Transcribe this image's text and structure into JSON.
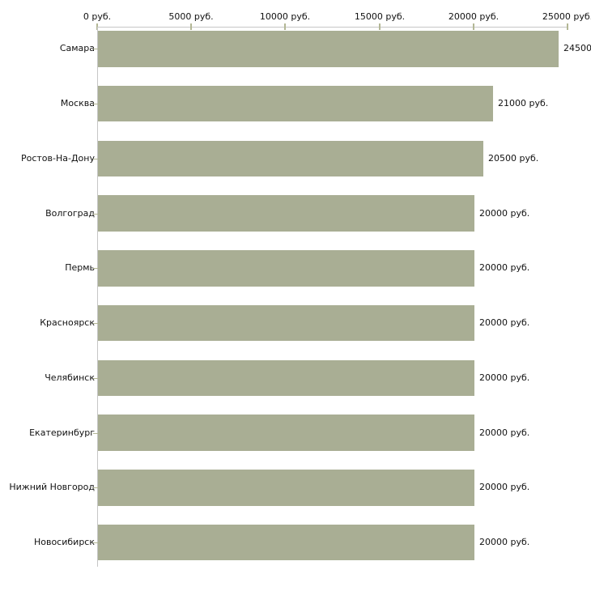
{
  "chart_data": {
    "type": "bar",
    "orientation": "horizontal",
    "title": "",
    "categories": [
      "Самара",
      "Москва",
      "Ростов-На-Дону",
      "Волгоград",
      "Пермь",
      "Красноярск",
      "Челябинск",
      "Екатеринбург",
      "Нижний Новгород",
      "Новосибирск"
    ],
    "values": [
      24500,
      21000,
      20500,
      20000,
      20000,
      20000,
      20000,
      20000,
      20000,
      20000
    ],
    "value_labels": [
      "24500",
      "21000 руб.",
      "20500 руб.",
      "20000 руб.",
      "20000 руб.",
      "20000 руб.",
      "20000 руб.",
      "20000 руб.",
      "20000 руб.",
      "20000 руб."
    ],
    "x_axis": {
      "position": "top",
      "min": 0,
      "max": 25000,
      "tick_values": [
        0,
        5000,
        10000,
        15000,
        20000,
        25000
      ],
      "tick_labels": [
        "0 руб.",
        "5000 руб.",
        "10000 руб.",
        "15000 руб.",
        "20000 руб.",
        "25000 руб."
      ],
      "unit": "руб."
    },
    "legend": false,
    "grid": false,
    "colors": {
      "bar": "#a9ae94",
      "axis_line": "#c6c6c6",
      "tick": "#b3b795",
      "text": "#111111",
      "background": "#ffffff"
    }
  }
}
